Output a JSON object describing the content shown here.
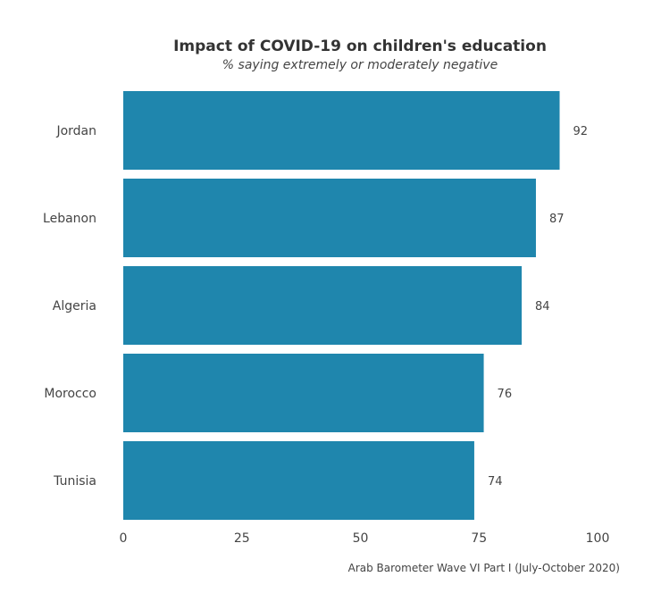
{
  "chart_data": {
    "type": "bar",
    "orientation": "horizontal",
    "title": "Impact of COVID-19 on children's education",
    "subtitle": "% saying extremely or moderately negative",
    "caption": "Arab Barometer Wave VI Part I (July-October 2020)",
    "categories": [
      "Jordan",
      "Lebanon",
      "Algeria",
      "Morocco",
      "Tunisia"
    ],
    "values": [
      92,
      87,
      84,
      76,
      74
    ],
    "xlim": [
      0,
      100
    ],
    "xticks": [
      0,
      25,
      50,
      75,
      100
    ],
    "xlabel": "",
    "ylabel": "",
    "grid": false,
    "legend": "none",
    "colors": {
      "bar": "#1f86ad",
      "text": "#444444",
      "title": "#333333"
    }
  }
}
